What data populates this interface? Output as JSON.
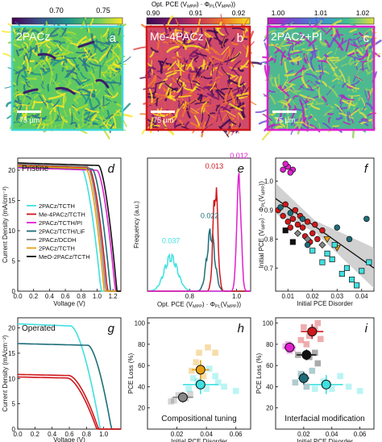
{
  "colors": {
    "cyan": "#3fe0e0",
    "red": "#d0181c",
    "magenta": "#e020d0",
    "teal": "#1e6e7a",
    "gray": "#888888",
    "orange": "#e8a010",
    "black": "#111111",
    "colorbar_a": [
      "#440154",
      "#3b528b",
      "#21918c",
      "#5ec962",
      "#fde725"
    ],
    "colorbar_b": [
      "#3a0a50",
      "#7a1a6a",
      "#c8365a",
      "#f07a2a",
      "#fbe020"
    ],
    "colorbar_c": [
      "#c020c0",
      "#7050d0",
      "#4090d0",
      "#40c090",
      "#e0e040"
    ]
  },
  "maps": {
    "colorbar_title": "Opt. PCE (V",
    "colorbar_title_sub1": "MPP",
    "colorbar_title_mid": ") · Φ",
    "colorbar_title_sub2": "PL",
    "colorbar_title_end": "(V",
    "colorbar_title_sub3": "MPP",
    "colorbar_title_close": "))",
    "a": {
      "label": "2PACz",
      "panel": "a",
      "ticks": [
        "0.70",
        "0.75"
      ],
      "scale": "75 µm"
    },
    "b": {
      "label": "Me-4PACz",
      "panel": "b",
      "ticks": [
        "0.90",
        "0.91",
        "0.92"
      ],
      "scale": "75 µm"
    },
    "c": {
      "label": "2PACz+PI",
      "panel": "c",
      "ticks": [
        "1.00",
        "1.01",
        "1.02"
      ],
      "scale": "75 µm"
    }
  },
  "chart_data": [
    {
      "panel": "d",
      "type": "line",
      "annotation": "Pristine",
      "xlabel": "Voltage (V)",
      "ylabel": "Current Density (mA/cm⁻²)",
      "xlim": [
        0,
        1.3
      ],
      "ylim": [
        0,
        22
      ],
      "xticks": [
        "0.0",
        "0.2",
        "0.4",
        "0.6",
        "0.8",
        "1.0",
        "1.2"
      ],
      "yticks": [
        "0",
        "5",
        "10",
        "15",
        "20"
      ],
      "legend": [
        "2PACz/TCTH",
        "Me-4PACz/TCTH",
        "2PACz/TCTH/PI",
        "2PACz/TCTH/LiF",
        "2PACz/DCDH",
        "2PACz/TCTH",
        "MeO-2PACz/TCTH"
      ],
      "series": [
        {
          "name": "2PACz/TCTH",
          "jsc": 20.9,
          "voc": 1.05,
          "knee": 0.8
        },
        {
          "name": "Me-4PACz/TCTH",
          "jsc": 20.8,
          "voc": 1.13,
          "knee": 0.9
        },
        {
          "name": "2PACz/TCTH/PI",
          "jsc": 20.4,
          "voc": 1.23,
          "knee": 1.0
        },
        {
          "name": "2PACz/TCTH/LiF",
          "jsc": 20.6,
          "voc": 1.17,
          "knee": 0.94
        },
        {
          "name": "2PACz/DCDH",
          "jsc": 21.0,
          "voc": 1.11,
          "knee": 0.88
        },
        {
          "name": "2PACz/TCTH",
          "jsc": 20.7,
          "voc": 1.09,
          "knee": 0.86
        },
        {
          "name": "MeO-2PACz/TCTH",
          "jsc": 21.2,
          "voc": 1.25,
          "knee": 1.02
        }
      ]
    },
    {
      "panel": "e",
      "type": "area",
      "xlabel": "Opt. PCE (V",
      "xlabel_sub1": "MPP",
      "xlabel_mid": ") · Φ",
      "xlabel_sub2": "PL",
      "xlabel_end": "(V",
      "xlabel_sub3": "MPP",
      "xlabel_close": "))",
      "ylabel": "Frequency (a.u.)",
      "xticks": [
        "0.8",
        "1.0"
      ],
      "xlim": [
        0.62,
        1.06
      ],
      "annotations": [
        "0.037",
        "0.022",
        "0.013",
        "0.012"
      ],
      "series": [
        {
          "center": 0.72,
          "width": 0.037,
          "height": 0.28
        },
        {
          "center": 0.89,
          "width": 0.022,
          "height": 0.48
        },
        {
          "center": 0.91,
          "width": 0.013,
          "height": 0.86
        },
        {
          "center": 1.01,
          "width": 0.012,
          "height": 0.95
        }
      ]
    },
    {
      "panel": "f",
      "type": "scatter",
      "xlabel": "Initial PCE Disorder",
      "ylabel": "Initial PCE (V",
      "ylabel_sub1": "MPP",
      "ylabel_mid": ") · Φ",
      "ylabel_sub2": "PL",
      "ylabel_end": "(V",
      "ylabel_sub3": "MPP",
      "ylabel_close": "))",
      "xlim": [
        0.005,
        0.045
      ],
      "ylim": [
        0.62,
        1.08
      ],
      "xticks": [
        "0.01",
        "0.02",
        "0.03",
        "0.04"
      ],
      "yticks": [
        "0.7",
        "0.8",
        "0.9",
        "1.0"
      ],
      "fit": {
        "x": [
          0.005,
          0.045
        ],
        "y": [
          0.94,
          0.7
        ]
      },
      "points": [
        [
          0.008,
          1.04,
          "m"
        ],
        [
          0.01,
          1.05,
          "m"
        ],
        [
          0.012,
          1.04,
          "m"
        ],
        [
          0.009,
          1.06,
          "m"
        ],
        [
          0.011,
          1.03,
          "m"
        ],
        [
          0.006,
          0.9,
          "r"
        ],
        [
          0.008,
          0.88,
          "r"
        ],
        [
          0.01,
          0.86,
          "r"
        ],
        [
          0.012,
          0.87,
          "r"
        ],
        [
          0.014,
          0.85,
          "r"
        ],
        [
          0.016,
          0.84,
          "r"
        ],
        [
          0.018,
          0.86,
          "r"
        ],
        [
          0.02,
          0.82,
          "r"
        ],
        [
          0.022,
          0.8,
          "r"
        ],
        [
          0.009,
          0.92,
          "r"
        ],
        [
          0.011,
          0.84,
          "r"
        ],
        [
          0.013,
          0.9,
          "r"
        ],
        [
          0.015,
          0.88,
          "r"
        ],
        [
          0.017,
          0.81,
          "r"
        ],
        [
          0.019,
          0.79,
          "r"
        ],
        [
          0.021,
          0.85,
          "r"
        ],
        [
          0.024,
          0.83,
          "r"
        ],
        [
          0.007,
          0.91,
          "t"
        ],
        [
          0.011,
          0.89,
          "t"
        ],
        [
          0.016,
          0.87,
          "t"
        ],
        [
          0.03,
          0.84,
          "t"
        ],
        [
          0.035,
          0.8,
          "t"
        ],
        [
          0.042,
          0.87,
          "t"
        ],
        [
          0.018,
          0.78,
          "t"
        ],
        [
          0.014,
          0.82,
          "g"
        ],
        [
          0.018,
          0.8,
          "g"
        ],
        [
          0.024,
          0.78,
          "g"
        ],
        [
          0.026,
          0.8,
          "o"
        ],
        [
          0.03,
          0.77,
          "o"
        ],
        [
          0.02,
          0.76,
          "c"
        ],
        [
          0.024,
          0.72,
          "c"
        ],
        [
          0.026,
          0.75,
          "c"
        ],
        [
          0.028,
          0.73,
          "c"
        ],
        [
          0.032,
          0.68,
          "c"
        ],
        [
          0.036,
          0.66,
          "c"
        ],
        [
          0.038,
          0.64,
          "c"
        ],
        [
          0.043,
          0.72,
          "c"
        ],
        [
          0.04,
          0.69,
          "c"
        ],
        [
          0.034,
          0.7,
          "c"
        ],
        [
          0.029,
          0.78,
          "c"
        ],
        [
          0.009,
          0.83,
          "k"
        ],
        [
          0.012,
          0.79,
          "k"
        ]
      ]
    },
    {
      "panel": "g",
      "type": "line",
      "annotation": "Operated",
      "xlabel": "Voltage (V)",
      "ylabel": "Current Density (mA/cm⁻²)",
      "xlim": [
        0,
        1.2
      ],
      "ylim": [
        0,
        22
      ],
      "xticks": [
        "0.0",
        "0.2",
        "0.4",
        "0.6",
        "0.8",
        "1.0"
      ],
      "yticks": [
        "0",
        "5",
        "10",
        "15",
        "20"
      ],
      "series": [
        {
          "jsc": 20.8,
          "voc": 0.96,
          "knee": 0.62
        },
        {
          "jsc": 16.9,
          "voc": 1.09,
          "knee": 0.82
        },
        {
          "jsc": 10.8,
          "voc": 0.94,
          "knee": 0.6
        },
        {
          "jsc": 10.3,
          "voc": 0.92,
          "knee": 0.58
        }
      ]
    },
    {
      "panel": "h",
      "type": "scatter",
      "annotation": "Compositional tuning",
      "xlabel": "Initial PCE Disorder",
      "ylabel": "PCE Loss (%)",
      "xlim": [
        0.0,
        0.07
      ],
      "ylim": [
        0,
        105
      ],
      "xticks": [
        "0.02",
        "0.04",
        "0.06"
      ],
      "yticks": [
        "20",
        "40",
        "60",
        "80",
        "100"
      ],
      "means": [
        {
          "x": 0.024,
          "y": 30,
          "xerr": 0.007,
          "yerr": 5,
          "color": "g"
        },
        {
          "x": 0.036,
          "y": 42,
          "xerr": 0.012,
          "yerr": 9,
          "color": "c"
        },
        {
          "x": 0.036,
          "y": 56,
          "xerr": 0.006,
          "yerr": 9,
          "color": "o"
        }
      ],
      "points": [
        [
          0.018,
          27,
          "g"
        ],
        [
          0.021,
          32,
          "g"
        ],
        [
          0.026,
          29,
          "g"
        ],
        [
          0.029,
          33,
          "g"
        ],
        [
          0.016,
          26,
          "g"
        ],
        [
          0.028,
          38,
          "c"
        ],
        [
          0.034,
          45,
          "c"
        ],
        [
          0.04,
          38,
          "c"
        ],
        [
          0.046,
          50,
          "c"
        ],
        [
          0.052,
          40,
          "c"
        ],
        [
          0.042,
          57,
          "c"
        ],
        [
          0.06,
          36,
          "c"
        ],
        [
          0.031,
          48,
          "c"
        ],
        [
          0.048,
          44,
          "c"
        ],
        [
          0.033,
          63,
          "o"
        ],
        [
          0.038,
          50,
          "o"
        ],
        [
          0.035,
          72,
          "o"
        ],
        [
          0.041,
          77,
          "o"
        ],
        [
          0.046,
          72,
          "o"
        ],
        [
          0.03,
          55,
          "o"
        ]
      ]
    },
    {
      "panel": "i",
      "type": "scatter",
      "annotation": "Interfacial modification",
      "xlabel": "Initial PCE Disorder",
      "ylabel": "PCE Loss (%)",
      "xlim": [
        0.0,
        0.07
      ],
      "ylim": [
        0,
        105
      ],
      "xticks": [
        "0.02",
        "0.04",
        "0.06"
      ],
      "yticks": [
        "20",
        "40",
        "60",
        "80",
        "100"
      ],
      "means": [
        {
          "x": 0.01,
          "y": 77,
          "xerr": 0.004,
          "yerr": 4,
          "color": "m"
        },
        {
          "x": 0.026,
          "y": 92,
          "xerr": 0.008,
          "yerr": 7,
          "color": "r"
        },
        {
          "x": 0.022,
          "y": 70,
          "xerr": 0.007,
          "yerr": 5,
          "color": "k"
        },
        {
          "x": 0.02,
          "y": 48,
          "xerr": 0.004,
          "yerr": 6,
          "color": "t"
        },
        {
          "x": 0.036,
          "y": 42,
          "xerr": 0.012,
          "yerr": 9,
          "color": "c"
        }
      ],
      "points": [
        [
          0.007,
          78,
          "m"
        ],
        [
          0.009,
          80,
          "m"
        ],
        [
          0.012,
          76,
          "m"
        ],
        [
          0.01,
          74,
          "m"
        ],
        [
          0.02,
          96,
          "r"
        ],
        [
          0.024,
          88,
          "r"
        ],
        [
          0.028,
          94,
          "r"
        ],
        [
          0.032,
          85,
          "r"
        ],
        [
          0.022,
          80,
          "r"
        ],
        [
          0.03,
          100,
          "r"
        ],
        [
          0.018,
          84,
          "r"
        ],
        [
          0.016,
          70,
          "k"
        ],
        [
          0.024,
          68,
          "k"
        ],
        [
          0.028,
          72,
          "k"
        ],
        [
          0.03,
          62,
          "k"
        ],
        [
          0.014,
          44,
          "t"
        ],
        [
          0.018,
          52,
          "t"
        ],
        [
          0.022,
          40,
          "t"
        ],
        [
          0.026,
          55,
          "t"
        ],
        [
          0.028,
          38,
          "c"
        ],
        [
          0.034,
          45,
          "c"
        ],
        [
          0.04,
          38,
          "c"
        ],
        [
          0.046,
          50,
          "c"
        ],
        [
          0.052,
          40,
          "c"
        ],
        [
          0.06,
          36,
          "c"
        ]
      ]
    }
  ]
}
